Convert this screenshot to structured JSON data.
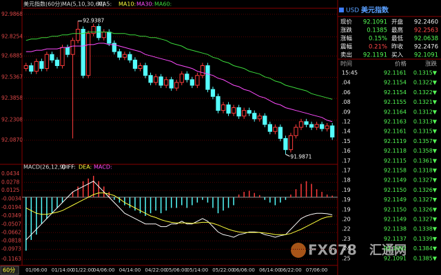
{
  "chart_data": [
    {
      "type": "candlestick",
      "title": "美元指数(60分)",
      "indicator_labels": [
        "MA(5,10,30,60)",
        "MA5:",
        "MA10:"
      ],
      "open": [
        92.6,
        92.62,
        92.58,
        92.65,
        92.6,
        92.7,
        92.66,
        92.62,
        92.75,
        92.7,
        92.8,
        92.88,
        92.55,
        92.85,
        92.9,
        92.82,
        92.86,
        92.78,
        92.72,
        92.68,
        92.7,
        92.66,
        92.6,
        92.62,
        92.55,
        92.5,
        92.54,
        92.48,
        92.52,
        92.46,
        92.5,
        92.56,
        92.52,
        92.48,
        92.55,
        92.62,
        92.45,
        92.4,
        92.3,
        92.34,
        92.28,
        92.32,
        92.26,
        92.3,
        92.28,
        92.24,
        92.26,
        92.2,
        92.15,
        92.18,
        92.1,
        92.02,
        92.12,
        92.18,
        92.22,
        92.2,
        92.18,
        92.2,
        92.17,
        92.19
      ],
      "high": [
        92.64,
        92.64,
        92.67,
        92.67,
        92.72,
        92.72,
        92.68,
        92.77,
        92.77,
        92.82,
        92.9387,
        92.9,
        92.87,
        92.92,
        92.92,
        92.88,
        92.88,
        92.8,
        92.74,
        92.72,
        92.72,
        92.68,
        92.64,
        92.64,
        92.57,
        92.56,
        92.56,
        92.54,
        92.54,
        92.52,
        92.58,
        92.58,
        92.54,
        92.57,
        92.64,
        92.64,
        92.47,
        92.42,
        92.36,
        92.36,
        92.34,
        92.34,
        92.32,
        92.32,
        92.3,
        92.28,
        92.28,
        92.22,
        92.2,
        92.2,
        92.12,
        92.14,
        92.2,
        92.24,
        92.24,
        92.22,
        92.22,
        92.22,
        92.21,
        92.21
      ],
      "low": [
        92.58,
        92.56,
        92.56,
        92.58,
        92.58,
        92.64,
        92.6,
        92.6,
        92.68,
        92.1,
        92.78,
        92.53,
        92.53,
        92.83,
        92.8,
        92.8,
        92.76,
        92.7,
        92.66,
        92.66,
        92.64,
        92.58,
        92.58,
        92.53,
        92.48,
        92.48,
        92.46,
        92.46,
        92.44,
        92.44,
        92.48,
        92.5,
        92.46,
        92.46,
        92.53,
        92.43,
        92.38,
        92.28,
        92.28,
        92.26,
        92.26,
        92.24,
        92.24,
        92.26,
        92.22,
        92.22,
        92.18,
        92.13,
        92.13,
        92.08,
        91.9871,
        92.0,
        92.1,
        92.16,
        92.18,
        92.16,
        92.16,
        92.15,
        92.15,
        92.09
      ],
      "close": [
        92.62,
        92.58,
        92.65,
        92.6,
        92.7,
        92.66,
        92.62,
        92.75,
        92.7,
        92.8,
        92.88,
        92.55,
        92.85,
        92.9,
        92.82,
        92.86,
        92.78,
        92.72,
        92.68,
        92.7,
        92.66,
        92.6,
        92.62,
        92.55,
        92.5,
        92.54,
        92.48,
        92.52,
        92.46,
        92.5,
        92.56,
        92.52,
        92.48,
        92.55,
        92.62,
        92.45,
        92.4,
        92.3,
        92.34,
        92.28,
        92.32,
        92.26,
        92.3,
        92.28,
        92.24,
        92.26,
        92.2,
        92.15,
        92.18,
        92.1,
        92.02,
        92.12,
        92.18,
        92.22,
        92.2,
        92.18,
        92.2,
        92.17,
        92.19,
        92.11
      ],
      "up_color": "#ff3c3c",
      "down_color": "#54fcfc",
      "series": [
        {
          "name": "MA30:",
          "color": "#ff4cff",
          "values": [
            92.72,
            92.72,
            92.73,
            92.73,
            92.74,
            92.74,
            92.74,
            92.75,
            92.75,
            92.76,
            92.76,
            92.76,
            92.77,
            92.77,
            92.78,
            92.78,
            92.77,
            92.77,
            92.76,
            92.75,
            92.74,
            92.73,
            92.72,
            92.7,
            92.69,
            92.68,
            92.67,
            92.66,
            92.65,
            92.63,
            92.62,
            92.61,
            92.6,
            92.58,
            92.57,
            92.56,
            92.55,
            92.53,
            92.52,
            92.5,
            92.48,
            92.47,
            92.45,
            92.44,
            92.42,
            92.4,
            92.39,
            92.37,
            92.35,
            92.34,
            92.32,
            92.31,
            92.3,
            92.29,
            92.28,
            92.27,
            92.26,
            92.25,
            92.23,
            92.22
          ]
        },
        {
          "name": "MA60:",
          "color": "#3cdc3c",
          "values": [
            92.8,
            92.81,
            92.81,
            92.82,
            92.82,
            92.83,
            92.83,
            92.84,
            92.84,
            92.85,
            92.85,
            92.85,
            92.86,
            92.86,
            92.86,
            92.86,
            92.86,
            92.85,
            92.85,
            92.85,
            92.84,
            92.84,
            92.83,
            92.83,
            92.82,
            92.82,
            92.81,
            92.8,
            92.78,
            92.77,
            92.76,
            92.74,
            92.73,
            92.72,
            92.71,
            92.7,
            92.68,
            92.67,
            92.65,
            92.64,
            92.62,
            92.61,
            92.6,
            92.58,
            92.57,
            92.56,
            92.54,
            92.53,
            92.51,
            92.5,
            92.48,
            92.47,
            92.46,
            92.45,
            92.44,
            92.42,
            92.41,
            92.4,
            92.39,
            92.38
          ]
        }
      ],
      "ylim": [
        91.93,
        93.03
      ],
      "yticks": [
        92.9868,
        92.8254,
        92.6885,
        92.5367,
        92.3858,
        92.2308,
        {
          "value": 92.087,
          "label": "92.0870"
        }
      ],
      "grid": true
    },
    {
      "type": "macd",
      "title": "MACD(26,12,9)",
      "categories": [
        null,
        null,
        "01/06:00",
        null,
        null,
        null,
        null,
        "01/14:00",
        null,
        null,
        null,
        "01/22:00",
        null,
        null,
        null,
        "04/06:00",
        null,
        null,
        null,
        null,
        "04/14:00",
        null,
        null,
        null,
        null,
        "04/22:00",
        null,
        null,
        null,
        "05/06:00",
        null,
        null,
        null,
        "05/14:00",
        null,
        null,
        null,
        null,
        "05/22:00",
        null,
        null,
        null,
        "06/06:00",
        null,
        null,
        null,
        null,
        "06/14:00",
        null,
        null,
        null,
        "06/22:00",
        null,
        null,
        null,
        null,
        "07/06:00",
        null,
        null,
        null
      ],
      "series": [
        {
          "name": "DIFF:",
          "color": "#ffffff",
          "values": [
            -0.08,
            -0.07,
            -0.06,
            -0.05,
            -0.04,
            -0.03,
            -0.02,
            -0.01,
            0.0,
            0.01,
            0.015,
            0.02,
            0.025,
            0.03,
            0.02,
            0.01,
            0.0,
            -0.01,
            -0.02,
            -0.03,
            -0.035,
            -0.04,
            -0.045,
            -0.05,
            -0.05,
            -0.05,
            -0.055,
            -0.055,
            -0.05,
            -0.05,
            -0.045,
            -0.05,
            -0.05,
            -0.045,
            -0.04,
            -0.045,
            -0.055,
            -0.065,
            -0.07,
            -0.072,
            -0.075,
            -0.07,
            -0.068,
            -0.065,
            -0.065,
            -0.066,
            -0.07,
            -0.072,
            -0.075,
            -0.072,
            -0.07,
            -0.06,
            -0.05,
            -0.04,
            -0.035,
            -0.032,
            -0.03,
            -0.03,
            -0.031,
            -0.033
          ]
        },
        {
          "name": "DEA:",
          "color": "#ffff3c",
          "values": [
            -0.02,
            -0.025,
            -0.03,
            -0.032,
            -0.032,
            -0.03,
            -0.028,
            -0.025,
            -0.02,
            -0.015,
            -0.01,
            -0.005,
            0.0,
            0.005,
            0.008,
            0.008,
            0.006,
            0.003,
            -0.003,
            -0.01,
            -0.015,
            -0.02,
            -0.025,
            -0.03,
            -0.035,
            -0.038,
            -0.042,
            -0.045,
            -0.047,
            -0.048,
            -0.048,
            -0.048,
            -0.049,
            -0.048,
            -0.047,
            -0.047,
            -0.049,
            -0.052,
            -0.056,
            -0.06,
            -0.063,
            -0.065,
            -0.066,
            -0.066,
            -0.066,
            -0.066,
            -0.067,
            -0.068,
            -0.07,
            -0.07,
            -0.07,
            -0.068,
            -0.064,
            -0.06,
            -0.055,
            -0.05,
            -0.045,
            -0.04,
            -0.037,
            -0.036
          ]
        }
      ],
      "histogram": {
        "name": "MACD:",
        "color": "#ff4cff",
        "up_color": "#ff3c3c",
        "down_color": "#54fcfc",
        "values": [
          -0.1,
          -0.08,
          -0.07,
          -0.05,
          -0.04,
          -0.03,
          -0.02,
          -0.01,
          0.0,
          0.01,
          0.02,
          0.03,
          0.035,
          0.04,
          0.03,
          0.02,
          0.01,
          -0.005,
          -0.01,
          -0.015,
          -0.02,
          -0.025,
          -0.03,
          -0.035,
          -0.03,
          -0.025,
          -0.03,
          -0.025,
          -0.02,
          -0.02,
          -0.015,
          -0.02,
          -0.015,
          -0.01,
          -0.005,
          -0.01,
          -0.02,
          -0.03,
          -0.025,
          -0.02,
          -0.015,
          0.005,
          0.01,
          0.012,
          0.008,
          0.004,
          -0.005,
          -0.01,
          -0.015,
          -0.01,
          -0.005,
          0.005,
          0.015,
          0.025,
          0.03,
          0.025,
          0.015,
          0.01,
          0.005,
          0.003
        ]
      },
      "ylim": [
        -0.125,
        0.05
      ],
      "yticks": [
        0.0434,
        0.0278,
        0.0125,
        -0.0034,
        -0.0194,
        -0.0349,
        -0.0507,
        -0.0662,
        -0.0818,
        -0.0973,
        -0.1163
      ],
      "grid": true
    }
  ],
  "period_button": "60分",
  "watermark": [
    "FX678",
    "汇通网"
  ],
  "quote_panel": {
    "symbol": "USD",
    "name": "美元指数",
    "stats": [
      [
        "现价",
        "92.1091",
        "开盘",
        "92.2460"
      ],
      [
        "涨跌",
        "0.1385",
        "最高",
        "92.2563"
      ],
      [
        "涨幅",
        "0.15%",
        "最低",
        "92.0638"
      ],
      [
        "震幅",
        "0.21%",
        "昨收",
        "92.2476"
      ],
      [
        "卖出",
        "92.1191",
        "买入",
        "92.1091"
      ]
    ],
    "ticks_header": [
      "时间",
      "价格",
      "涨跌"
    ],
    "ticks": [
      [
        "15:45",
        "92.1161",
        "0.1315▼"
      ],
      [
        ".04",
        "92.1154",
        "0.1322▼"
      ],
      [
        ".06",
        "92.1154",
        "0.1322▼"
      ],
      [
        ".08",
        "92.1155",
        "0.1321▼"
      ],
      [
        ".09",
        "92.1164",
        "0.1312▼"
      ],
      [
        ".12",
        "92.1163",
        "0.1313▼"
      ],
      [
        ".14",
        "92.1161",
        "0.1315▼"
      ],
      [
        ".15",
        "92.1119",
        "0.1357▼"
      ],
      [
        ".16",
        "92.1118",
        "0.1358▼"
      ],
      [
        ".17",
        "92.1115",
        "0.1361▼"
      ],
      [
        ".17",
        "92.1158",
        "0.1318▼"
      ],
      [
        ".18",
        "92.1149",
        "0.1327▼"
      ],
      [
        ".19",
        "92.1150",
        "0.1326▼"
      ],
      [
        ".19",
        "92.1149",
        "0.1327▼"
      ],
      [
        ".19",
        "92.1150",
        "0.1326▼"
      ],
      [
        ".20",
        "92.1149",
        "0.1327▼"
      ],
      [
        ".22",
        "92.1138",
        "0.1338▼"
      ],
      [
        ".23",
        "92.1137",
        "0.1339▼"
      ],
      [
        ".24",
        "92.1092",
        "0.1384▼"
      ],
      [
        ".25",
        "92.1091",
        "0.1385▼"
      ]
    ]
  }
}
